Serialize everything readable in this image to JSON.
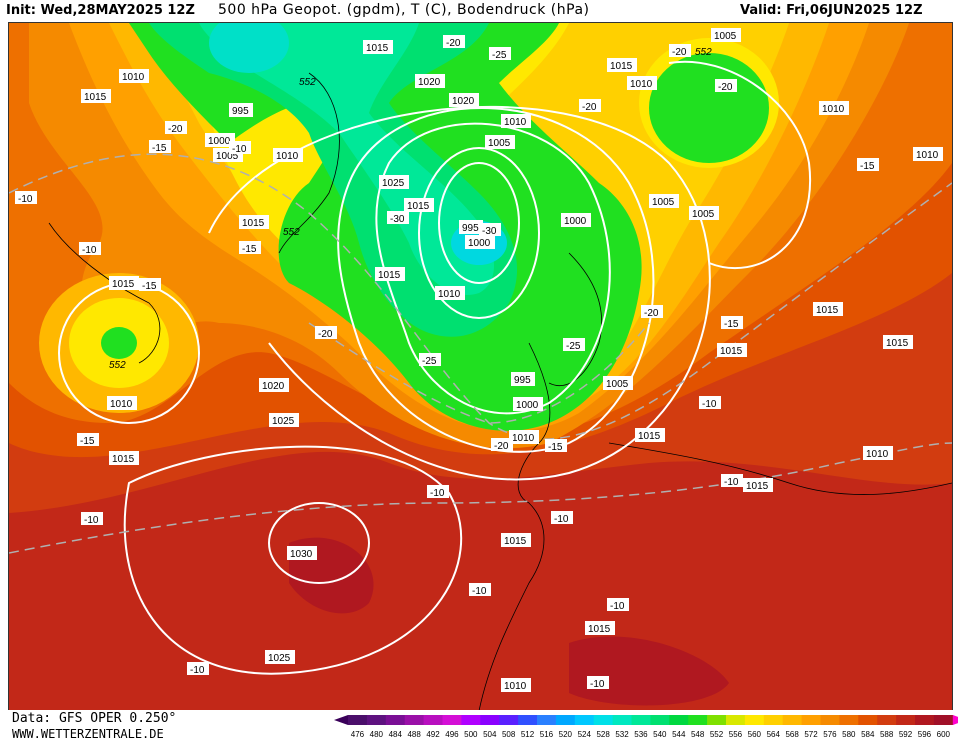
{
  "header": {
    "init": "Init: Wed,28MAY2025 12Z",
    "title": "500 hPa Geopot. (gpdm), T (C), Bodendruck (hPa)",
    "valid": "Valid: Fri,06JUN2025 12Z"
  },
  "footer": {
    "data_source": "Data: GFS OPER 0.250°",
    "website": "WWW.WETTERZENTRALE.DE"
  },
  "legend": {
    "values": [
      "476",
      "480",
      "484",
      "488",
      "492",
      "496",
      "500",
      "504",
      "508",
      "512",
      "516",
      "520",
      "524",
      "528",
      "532",
      "536",
      "540",
      "544",
      "548",
      "552",
      "556",
      "560",
      "564",
      "568",
      "572",
      "576",
      "580",
      "584",
      "588",
      "592",
      "596",
      "600"
    ],
    "colors": [
      "#4b0f6b",
      "#5e1280",
      "#7a0f95",
      "#9a10a8",
      "#b80fbf",
      "#d40fd6",
      "#b000ff",
      "#8a00ff",
      "#5a20ff",
      "#3050ff",
      "#2a80ff",
      "#00a8ff",
      "#00c8ff",
      "#00e0e8",
      "#00e8c0",
      "#00e898",
      "#00e070",
      "#00d840",
      "#20e020",
      "#7fe000",
      "#d8e800",
      "#ffe800",
      "#ffd000",
      "#ffb800",
      "#ffa000",
      "#f58a00",
      "#ee7000",
      "#e25200",
      "#d23c10",
      "#c22818",
      "#b01820",
      "#a01028"
    ],
    "end_colors": [
      "#3a005a",
      "#ff00cc"
    ]
  },
  "map": {
    "pressure_labels": [
      {
        "text": "1010"
      },
      {
        "text": "1015"
      },
      {
        "text": "1015"
      },
      {
        "text": "995"
      },
      {
        "text": "1000"
      },
      {
        "text": "1005"
      },
      {
        "text": "1010"
      },
      {
        "text": "1020"
      },
      {
        "text": "1020"
      },
      {
        "text": "1010"
      },
      {
        "text": "1005"
      },
      {
        "text": "1025"
      },
      {
        "text": "1015"
      },
      {
        "text": "995"
      },
      {
        "text": "1000"
      },
      {
        "text": "1015"
      },
      {
        "text": "1010"
      },
      {
        "text": "1000"
      },
      {
        "text": "1005"
      },
      {
        "text": "1005"
      },
      {
        "text": "1005"
      },
      {
        "text": "1015"
      },
      {
        "text": "1010"
      },
      {
        "text": "1010"
      },
      {
        "text": "1010"
      },
      {
        "text": "1015"
      },
      {
        "text": "1015"
      },
      {
        "text": "1015"
      },
      {
        "text": "1020"
      },
      {
        "text": "1010"
      },
      {
        "text": "1025"
      },
      {
        "text": "1015"
      },
      {
        "text": "995"
      },
      {
        "text": "1000"
      },
      {
        "text": "1005"
      },
      {
        "text": "1010"
      },
      {
        "text": "1015"
      },
      {
        "text": "1015"
      },
      {
        "text": "1010"
      },
      {
        "text": "1015"
      },
      {
        "text": "1030"
      },
      {
        "text": "1015"
      },
      {
        "text": "1025"
      },
      {
        "text": "1015"
      },
      {
        "text": "1010"
      },
      {
        "text": "1015"
      }
    ],
    "temp_labels": [
      {
        "text": "-20"
      },
      {
        "text": "-25"
      },
      {
        "text": "-20"
      },
      {
        "text": "-20"
      },
      {
        "text": "-20"
      },
      {
        "text": "-20"
      },
      {
        "text": "-15"
      },
      {
        "text": "-15"
      },
      {
        "text": "-10"
      },
      {
        "text": "-10"
      },
      {
        "text": "-15"
      },
      {
        "text": "-15"
      },
      {
        "text": "-30"
      },
      {
        "text": "-30"
      },
      {
        "text": "-20"
      },
      {
        "text": "-25"
      },
      {
        "text": "-25"
      },
      {
        "text": "-20"
      },
      {
        "text": "-20"
      },
      {
        "text": "-15"
      },
      {
        "text": "-15"
      },
      {
        "text": "-10"
      },
      {
        "text": "-15"
      },
      {
        "text": "-10"
      },
      {
        "text": "-10"
      },
      {
        "text": "-10"
      },
      {
        "text": "-10"
      },
      {
        "text": "-10"
      },
      {
        "text": "-10"
      },
      {
        "text": "-10"
      },
      {
        "text": "-10"
      },
      {
        "text": "-10"
      }
    ],
    "geopot_labels": [
      {
        "text": "552"
      },
      {
        "text": "552"
      },
      {
        "text": "552"
      },
      {
        "text": "552"
      }
    ]
  }
}
